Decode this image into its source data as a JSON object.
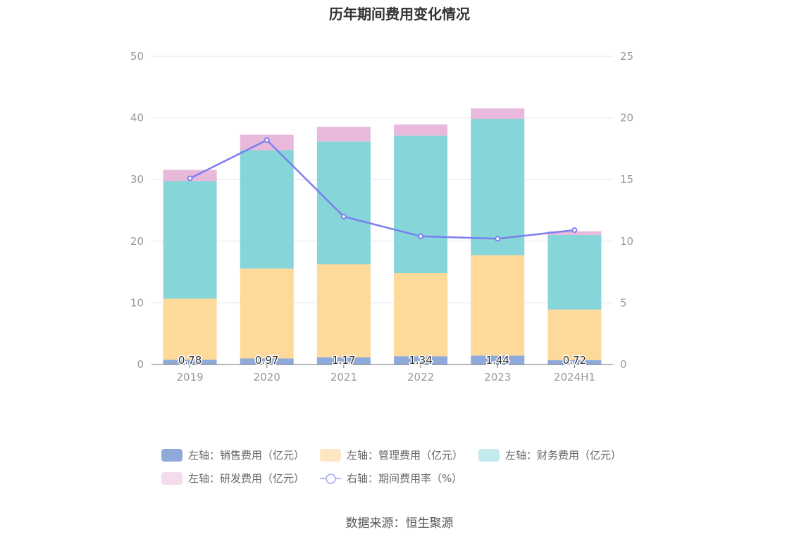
{
  "title": "历年期间费用变化情况",
  "source_text": "数据来源：恒生聚源",
  "legend": [
    {
      "label": "左轴：销售费用（亿元）",
      "color": "#8eaadb"
    },
    {
      "label": "左轴：管理费用（亿元）",
      "color": "#fdd99a"
    },
    {
      "label": "左轴：财务费用（亿元）",
      "color": "#86d5d8"
    },
    {
      "label": "左轴：研发费用（亿元）",
      "color": "#e8b9da"
    },
    {
      "label": "右轴：期间费用率（%）",
      "color": "#7b7ff0"
    }
  ],
  "chart_data": {
    "type": "bar",
    "categories": [
      "2019",
      "2020",
      "2021",
      "2022",
      "2023",
      "2024H1"
    ],
    "series": [
      {
        "name": "左轴：销售费用（亿元）",
        "values": [
          0.78,
          0.97,
          1.17,
          1.34,
          1.44,
          0.72
        ],
        "color": "#8eaadb"
      },
      {
        "name": "左轴：管理费用（亿元）",
        "values": [
          9.9,
          14.6,
          15.1,
          13.5,
          16.3,
          8.2
        ],
        "color": "#fdd99a"
      },
      {
        "name": "左轴：财务费用（亿元）",
        "values": [
          19.1,
          19.2,
          19.9,
          22.3,
          22.1,
          12.1
        ],
        "color": "#86d5d8"
      },
      {
        "name": "左轴：研发费用（亿元）",
        "values": [
          1.8,
          2.5,
          2.4,
          1.8,
          1.7,
          0.6
        ],
        "color": "#e8b9da"
      }
    ],
    "line_series": {
      "name": "右轴：期间费用率（%）",
      "values": [
        15.1,
        18.2,
        12.0,
        10.4,
        10.2,
        10.9
      ],
      "color": "#7b7ff0"
    },
    "data_labels": [
      "0.78",
      "0.97",
      "1.17",
      "1.34",
      "1.44",
      "0.72"
    ],
    "ylim_left": [
      0,
      50
    ],
    "ylim_right": [
      0,
      25
    ],
    "left_ticks": [
      "0",
      "10",
      "20",
      "30",
      "40",
      "50"
    ],
    "right_ticks": [
      "0",
      "5",
      "10",
      "15",
      "20",
      "25"
    ],
    "stacked": true,
    "grid": true,
    "legend_position": "bottom"
  }
}
